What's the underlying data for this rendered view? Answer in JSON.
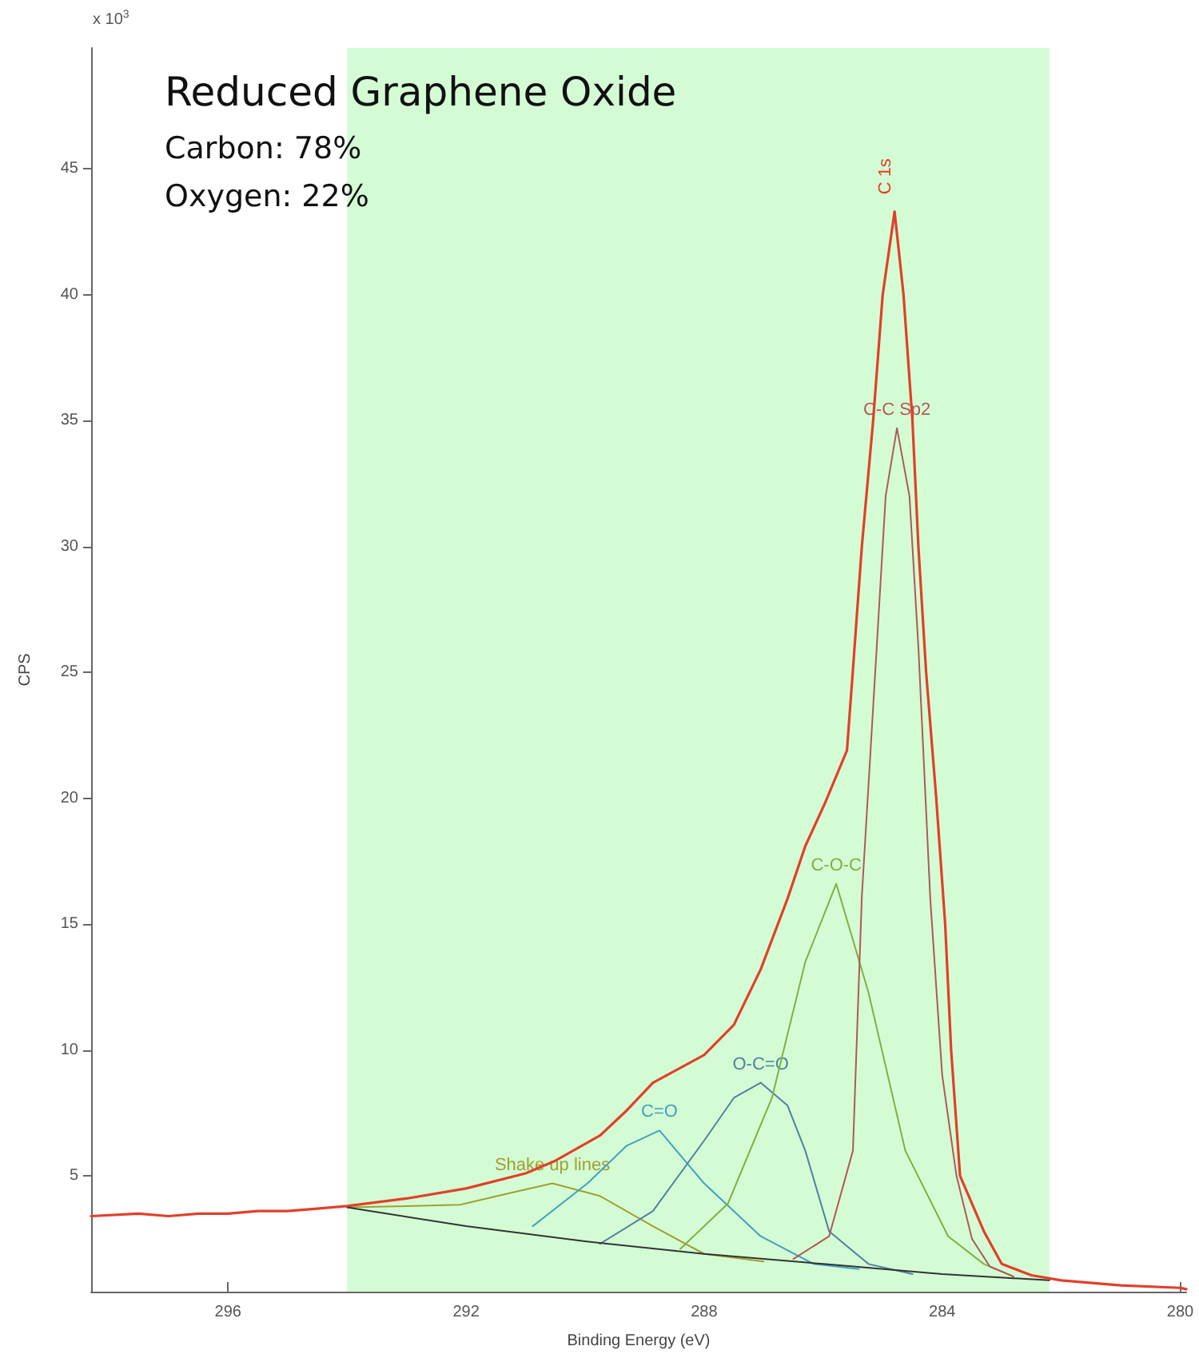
{
  "chart_data": {
    "type": "line",
    "title": "Reduced Graphene Oxide",
    "subtitle": "Carbon: 78%\nOxygen: 22%",
    "xlabel": "Binding Energy (eV)",
    "ylabel": "CPS",
    "annotations": [
      "x 10$^{3}$"
    ],
    "xlim": [
      298.3,
      279.9
    ],
    "xticks": [
      296,
      292,
      288,
      284,
      280
    ],
    "ylim": [
      0.4,
      49.8
    ],
    "yticks": [
      5,
      10,
      15,
      20,
      25,
      30,
      35,
      40,
      45
    ],
    "grid": false,
    "legend": false,
    "marker": "none",
    "line_style": "solid",
    "bands": [
      {
        "axis": "x",
        "from": 294.0,
        "to": 282.2,
        "color": "#d4fcd4"
      }
    ],
    "series": [
      {
        "name": "C 1s",
        "color": "#e0402a",
        "x": [
          298.3,
          297.5,
          297,
          296.5,
          296,
          295.5,
          295,
          294.5,
          294,
          293,
          292,
          291,
          290.5,
          289.75,
          289.3,
          288.86,
          288,
          287.5,
          287.05,
          286.6,
          286.3,
          285.97,
          285.6,
          285.5,
          285.35,
          285.16,
          285.0,
          284.8,
          284.65,
          284.5,
          284.4,
          284.27,
          284.1,
          283.95,
          283.85,
          283.7,
          283.3,
          283,
          282.5,
          282,
          281,
          280,
          279.9
        ],
        "values": [
          3.4,
          3.5,
          3.4,
          3.5,
          3.5,
          3.6,
          3.6,
          3.7,
          3.8,
          4.1,
          4.5,
          5.1,
          5.6,
          6.6,
          7.6,
          8.7,
          9.8,
          11.0,
          13.2,
          16.0,
          18.1,
          19.8,
          21.9,
          25.1,
          30,
          35,
          40,
          43.3,
          40,
          35,
          30,
          25,
          20,
          15,
          10,
          5,
          2.8,
          1.5,
          1.05,
          0.85,
          0.65,
          0.55,
          0.5
        ]
      },
      {
        "color": "#333333",
        "x": [
          294,
          292,
          290,
          288,
          286,
          284,
          282.2
        ],
        "values": [
          3.75,
          3.0,
          2.4,
          1.9,
          1.5,
          1.1,
          0.85
        ]
      },
      {
        "name": "C-C Sp2",
        "color": "#b05858",
        "x": [
          286.5,
          285.9,
          285.5,
          285.35,
          285.1,
          284.95,
          284.76,
          284.55,
          284.4,
          284.2,
          284.0,
          283.76,
          283.5,
          283.2,
          282.8
        ],
        "values": [
          1.7,
          2.6,
          6.0,
          16.1,
          26,
          32,
          34.7,
          32,
          26,
          16,
          9,
          5,
          2.5,
          1.4,
          1.0
        ]
      },
      {
        "name": "C-O-C",
        "color": "#80b040",
        "x": [
          288.4,
          287.6,
          286.86,
          286.3,
          285.78,
          285.24,
          284.62,
          283.9,
          283.3,
          282.8
        ],
        "values": [
          2.1,
          3.9,
          8.1,
          13.5,
          16.6,
          12.3,
          6.0,
          2.6,
          1.5,
          1.0
        ]
      },
      {
        "name": "O-C=O",
        "color": "#5080a0",
        "x": [
          289.75,
          288.86,
          288.0,
          287.5,
          287.05,
          286.6,
          286.3,
          285.9,
          285.24,
          284.5
        ],
        "values": [
          2.3,
          3.6,
          6.4,
          8.1,
          8.7,
          7.8,
          6.0,
          2.8,
          1.5,
          1.1
        ]
      },
      {
        "name": "C=O",
        "color": "#40a0c0",
        "x": [
          290.88,
          289.96,
          289.3,
          288.75,
          288.0,
          287.05,
          286.16,
          285.4
        ],
        "values": [
          3.0,
          4.7,
          6.2,
          6.8,
          4.7,
          2.6,
          1.5,
          1.3
        ]
      },
      {
        "name": "Shake up lines",
        "color": "#a0a030",
        "x": [
          294,
          293,
          292.1,
          291.3,
          290.55,
          289.75,
          288.86,
          288.0,
          287.0
        ],
        "values": [
          3.75,
          3.8,
          3.85,
          4.3,
          4.7,
          4.2,
          3.0,
          1.9,
          1.6
        ]
      }
    ]
  }
}
